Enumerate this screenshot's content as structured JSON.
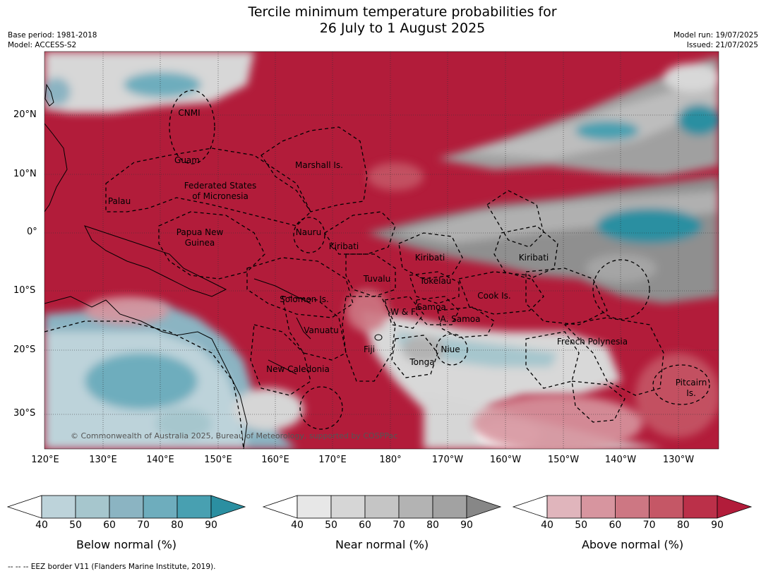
{
  "title": {
    "line1": "Tercile minimum temperature probabilities for",
    "line2": "26 July to 1 August 2025"
  },
  "meta": {
    "base_period": "Base period: 1981-2018",
    "model": "Model: ACCESS-S2",
    "model_run": "Model run: 19/07/2025",
    "issued": "Issued: 21/07/2025"
  },
  "axes": {
    "lat_labels": [
      "20°N",
      "10°N",
      "0°",
      "10°S",
      "20°S",
      "30°S"
    ],
    "lon_labels": [
      "120°E",
      "130°E",
      "140°E",
      "150°E",
      "160°E",
      "170°E",
      "180°",
      "170°W",
      "160°W",
      "150°W",
      "140°W",
      "130°W"
    ]
  },
  "regions": [
    "CNMI",
    "Guam",
    "Palau",
    "Federated States",
    "of Micronesia",
    "Marshall Is.",
    "Papua New",
    "Guinea",
    "Nauru",
    "Kiribati",
    "Kiribati",
    "Kiribati",
    "Tuvalu",
    "Tokelau",
    "Solomon Is.",
    "W & F",
    "Samoa",
    "A. Samoa",
    "Cook Is.",
    "Vanuatu",
    "Fiji",
    "Niue",
    "Tonga",
    "New Caledonia",
    "French Polynesia",
    "Pitcairn",
    "Is."
  ],
  "copyright": "© Commonwealth of Australia 2025, Bureau of Meteorology, supported by COSPPac",
  "colorbars": [
    {
      "title": "Below normal (%)",
      "ticks": [
        "40",
        "50",
        "60",
        "70",
        "80",
        "90"
      ],
      "colors": [
        "#bdd3da",
        "#a6c6cd",
        "#8bb4c2",
        "#6eadbd",
        "#48a0b1",
        "#2b8fa1"
      ]
    },
    {
      "title": "Near normal (%)",
      "ticks": [
        "40",
        "50",
        "60",
        "70",
        "80",
        "90"
      ],
      "colors": [
        "#e7e7e7",
        "#d6d6d6",
        "#c5c5c5",
        "#b3b3b3",
        "#a2a2a2",
        "#878787"
      ]
    },
    {
      "title": "Above normal (%)",
      "ticks": [
        "40",
        "50",
        "60",
        "70",
        "80",
        "90"
      ],
      "colors": [
        "#e0b5bc",
        "#d7959f",
        "#cd7783",
        "#c55766",
        "#bb3049",
        "#b21c3a"
      ]
    }
  ],
  "footnote": "--  --  -- EEZ border V11 (Flanders Marine Institute, 2019)."
}
